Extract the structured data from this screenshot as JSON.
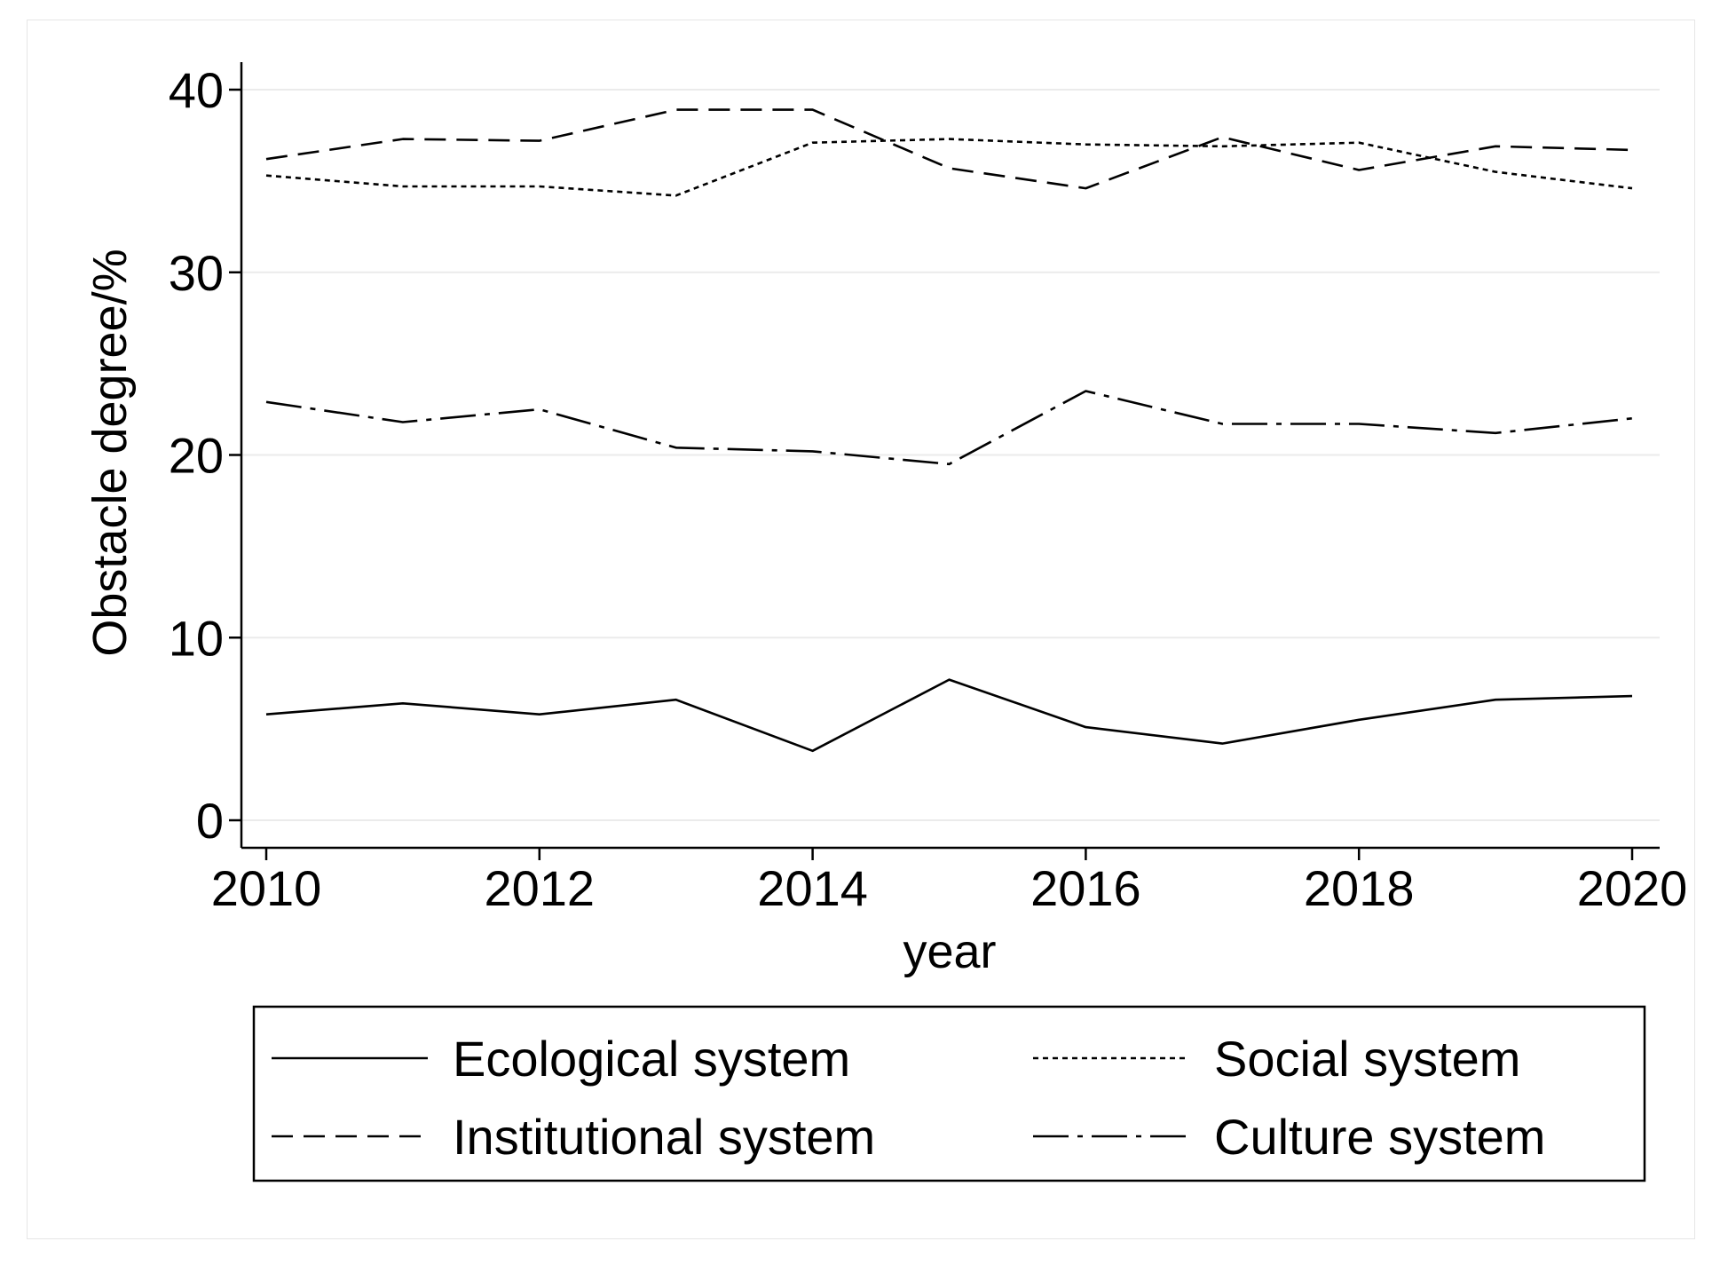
{
  "chart_data": {
    "type": "line",
    "title": "",
    "xlabel": "year",
    "ylabel": "Obstacle degree/%",
    "xlim": [
      2010,
      2020
    ],
    "ylim": [
      0,
      40
    ],
    "x": [
      2010,
      2011,
      2012,
      2013,
      2014,
      2015,
      2016,
      2017,
      2018,
      2019,
      2020
    ],
    "xticks": [
      "2010",
      "2012",
      "2014",
      "2016",
      "2018",
      "2020"
    ],
    "yticks": [
      "0",
      "10",
      "20",
      "30",
      "40"
    ],
    "grid": true,
    "legend_position": "bottom",
    "series": [
      {
        "name": "Ecological system",
        "style": "solid",
        "values": [
          5.8,
          6.4,
          5.8,
          6.6,
          3.8,
          7.7,
          5.1,
          4.2,
          5.5,
          6.6,
          6.8
        ]
      },
      {
        "name": "Social system",
        "style": "dotted",
        "values": [
          35.3,
          34.7,
          34.7,
          34.2,
          37.1,
          37.3,
          37.0,
          36.9,
          37.1,
          35.5,
          34.6
        ]
      },
      {
        "name": "Institutional system",
        "style": "dashed",
        "values": [
          36.2,
          37.3,
          37.2,
          38.9,
          38.9,
          35.7,
          34.6,
          37.4,
          35.6,
          36.9,
          36.7
        ]
      },
      {
        "name": "Culture system",
        "style": "dashdot",
        "values": [
          22.9,
          21.8,
          22.5,
          20.4,
          20.2,
          19.5,
          23.5,
          21.7,
          21.7,
          21.2,
          22.0
        ]
      }
    ]
  }
}
